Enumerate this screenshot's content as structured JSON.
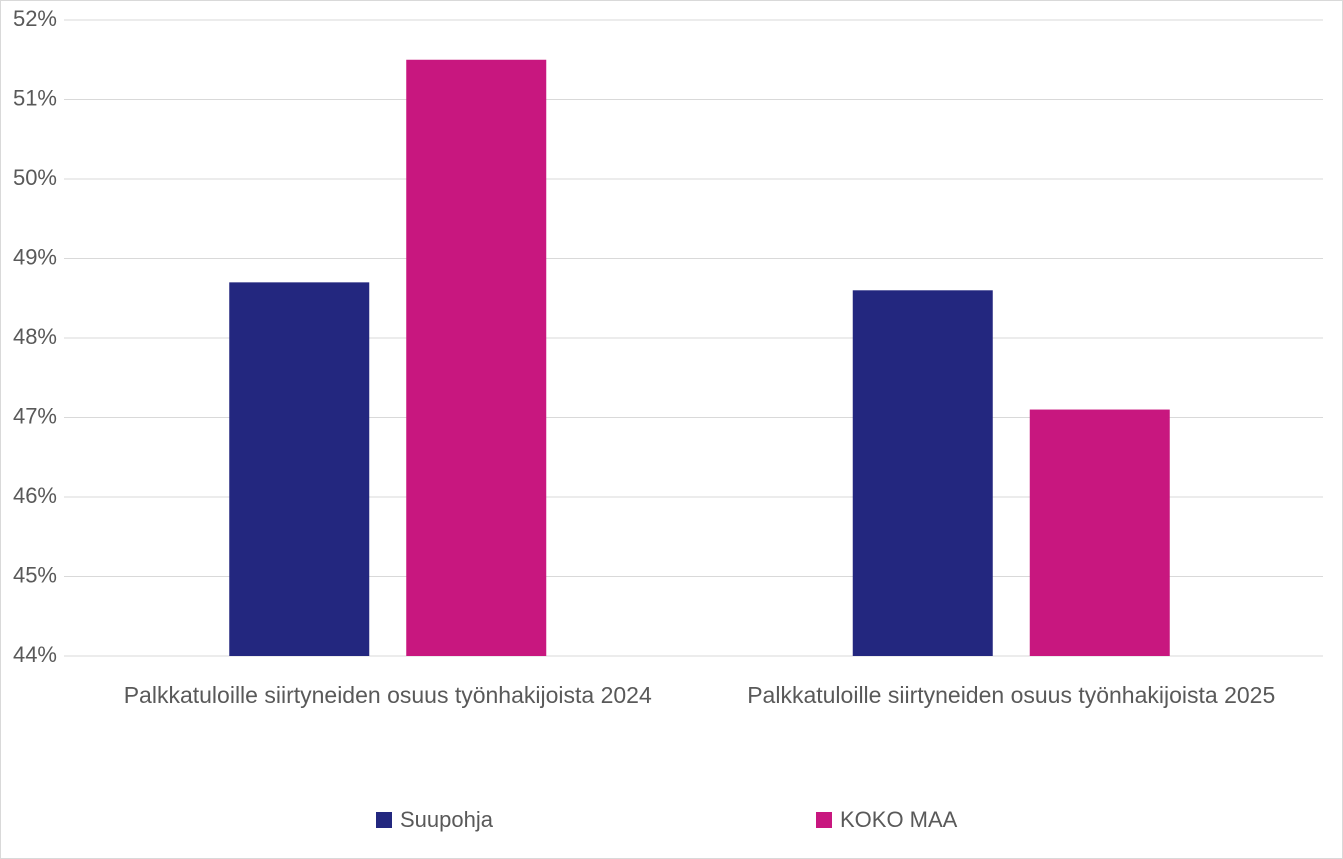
{
  "chart_data": {
    "type": "bar",
    "categories": [
      "Palkkatuloille siirtyneiden osuus työnhakijoista 2024",
      "Palkkatuloille siirtyneiden osuus työnhakijoista 2025"
    ],
    "series": [
      {
        "name": "Suupohja",
        "color": "#23277f",
        "values": [
          48.7,
          48.6
        ]
      },
      {
        "name": "KOKO MAA",
        "color": "#c8177f",
        "values": [
          51.5,
          47.1
        ]
      }
    ],
    "ylim": [
      44,
      52
    ],
    "yticks": [
      {
        "value": 44,
        "label": "44%"
      },
      {
        "value": 45,
        "label": "45%"
      },
      {
        "value": 46,
        "label": "46%"
      },
      {
        "value": 47,
        "label": "47%"
      },
      {
        "value": 48,
        "label": "48%"
      },
      {
        "value": 49,
        "label": "49%"
      },
      {
        "value": 50,
        "label": "50%"
      },
      {
        "value": 51,
        "label": "51%"
      },
      {
        "value": 52,
        "label": "52%"
      }
    ],
    "grid": true,
    "legend": "bottom"
  }
}
